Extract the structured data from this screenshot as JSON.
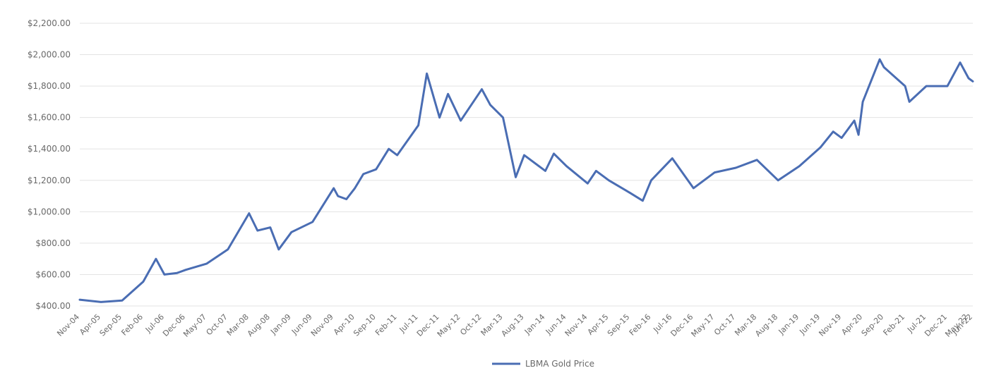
{
  "chart_data": {
    "type": "line",
    "title": "",
    "xlabel": "",
    "ylabel": "",
    "ylim": [
      400,
      2200
    ],
    "y_ticks": [
      400,
      600,
      800,
      1000,
      1200,
      1400,
      1600,
      1800,
      2000,
      2200
    ],
    "y_tick_labels": [
      "$400.00",
      "$600.00",
      "$800.00",
      "$1,000.00",
      "$1,200.00",
      "$1,400.00",
      "$1,600.00",
      "$1,800.00",
      "$2,000.00",
      "$2,200.00"
    ],
    "x_tick_labels": [
      "Nov-04",
      "Apr-05",
      "Sep-05",
      "Feb-06",
      "Jul-06",
      "Dec-06",
      "May-07",
      "Oct-07",
      "Mar-08",
      "Aug-08",
      "Jan-09",
      "Jun-09",
      "Nov-09",
      "Apr-10",
      "Sep-10",
      "Feb-11",
      "Jul-11",
      "Dec-11",
      "May-12",
      "Oct-12",
      "Mar-13",
      "Aug-13",
      "Jan-14",
      "Jun-14",
      "Nov-14",
      "Apr-15",
      "Sep-15",
      "Feb-16",
      "Jul-16",
      "Dec-16",
      "May-17",
      "Oct-17",
      "Mar-18",
      "Aug-18",
      "Jan-19",
      "Jun-19",
      "Nov-19",
      "Apr-20",
      "Sep-20",
      "Feb-21",
      "Jul-21",
      "Dec-21",
      "May-22",
      "Jun-22"
    ],
    "grid": true,
    "legend_position": "bottom",
    "color": "#4a6db3",
    "series": [
      {
        "name": "LBMA Gold Price",
        "x": [
          "Nov-04",
          "Apr-05",
          "Sep-05",
          "Feb-06",
          "May-06",
          "Jul-06",
          "Oct-06",
          "Dec-06",
          "May-07",
          "Oct-07",
          "Mar-08",
          "May-08",
          "Aug-08",
          "Oct-08",
          "Jan-09",
          "Jun-09",
          "Nov-09",
          "Dec-09",
          "Feb-10",
          "Apr-10",
          "Jun-10",
          "Sep-10",
          "Dec-10",
          "Feb-11",
          "Jul-11",
          "Sep-11",
          "Dec-11",
          "Feb-12",
          "May-12",
          "Oct-12",
          "Dec-12",
          "Mar-13",
          "Jun-13",
          "Aug-13",
          "Jan-14",
          "Mar-14",
          "Jun-14",
          "Nov-14",
          "Jan-15",
          "Apr-15",
          "Sep-15",
          "Dec-15",
          "Feb-16",
          "Jul-16",
          "Dec-16",
          "May-17",
          "Oct-17",
          "Mar-18",
          "Aug-18",
          "Jan-19",
          "Jun-19",
          "Sep-19",
          "Nov-19",
          "Feb-20",
          "Mar-20",
          "Apr-20",
          "Aug-20",
          "Sep-20",
          "Feb-21",
          "Mar-21",
          "Jul-21",
          "Dec-21",
          "Mar-22",
          "May-22",
          "Jun-22"
        ],
        "values": [
          440,
          425,
          435,
          555,
          700,
          600,
          610,
          630,
          670,
          760,
          990,
          880,
          900,
          760,
          870,
          935,
          1150,
          1100,
          1080,
          1150,
          1240,
          1270,
          1400,
          1360,
          1550,
          1880,
          1600,
          1750,
          1580,
          1780,
          1680,
          1600,
          1220,
          1360,
          1260,
          1370,
          1290,
          1180,
          1260,
          1200,
          1120,
          1070,
          1200,
          1340,
          1150,
          1250,
          1280,
          1330,
          1200,
          1290,
          1410,
          1510,
          1470,
          1580,
          1490,
          1700,
          1970,
          1920,
          1800,
          1700,
          1800,
          1800,
          1950,
          1850,
          1830
        ]
      }
    ]
  }
}
